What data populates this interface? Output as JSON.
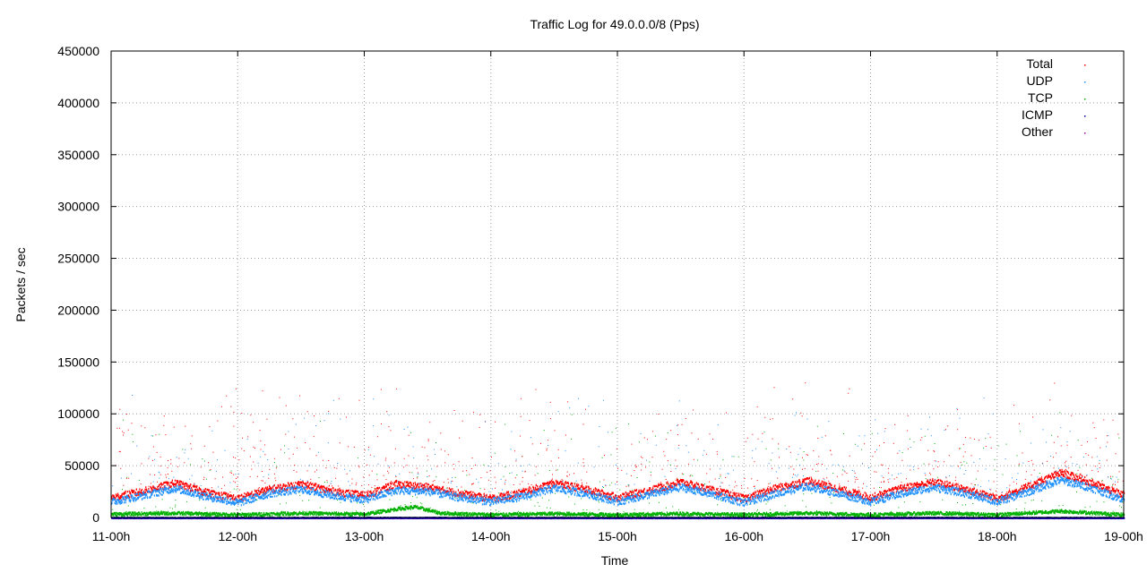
{
  "chart_data": {
    "type": "scatter",
    "title": "Traffic Log for 49.0.0.0/8 (Pps)",
    "xlabel": "Time",
    "ylabel": "Packets / sec",
    "xlim": [
      "11-00h",
      "19-00h"
    ],
    "ylim": [
      0,
      450000
    ],
    "x_ticks": [
      "11-00h",
      "12-00h",
      "13-00h",
      "14-00h",
      "15-00h",
      "16-00h",
      "17-00h",
      "18-00h",
      "19-00h"
    ],
    "y_ticks": [
      0,
      50000,
      100000,
      150000,
      200000,
      250000,
      300000,
      350000,
      400000,
      450000
    ],
    "grid": true,
    "legend_position": "top-right",
    "series": [
      {
        "name": "Total",
        "color": "#ff0000",
        "x_days": [
          0,
          0.25,
          0.5,
          0.75,
          1,
          1.25,
          1.5,
          1.75,
          2,
          2.25,
          2.5,
          2.75,
          3,
          3.25,
          3.5,
          3.75,
          4,
          4.25,
          4.5,
          4.75,
          5,
          5.25,
          5.5,
          5.75,
          6,
          6.25,
          6.5,
          6.75,
          7,
          7.25,
          7.5,
          7.75,
          8
        ],
        "values": [
          20000,
          26000,
          34000,
          25000,
          19000,
          28000,
          33000,
          26000,
          22000,
          33000,
          30000,
          24000,
          19000,
          25000,
          34000,
          28000,
          20000,
          27000,
          35000,
          27000,
          19000,
          29000,
          36000,
          28000,
          20000,
          29000,
          35000,
          28000,
          19000,
          31000,
          44000,
          34000,
          22000
        ]
      },
      {
        "name": "UDP",
        "color": "#1e90ff",
        "x_days": [
          0,
          0.25,
          0.5,
          0.75,
          1,
          1.25,
          1.5,
          1.75,
          2,
          2.25,
          2.5,
          2.75,
          3,
          3.25,
          3.5,
          3.75,
          4,
          4.25,
          4.5,
          4.75,
          5,
          5.25,
          5.5,
          5.75,
          6,
          6.25,
          6.5,
          6.75,
          7,
          7.25,
          7.5,
          7.75,
          8
        ],
        "values": [
          16000,
          22000,
          29000,
          21000,
          15000,
          24000,
          28000,
          22000,
          18000,
          27000,
          26000,
          20000,
          16000,
          21000,
          29000,
          24000,
          16000,
          23000,
          30000,
          23000,
          15000,
          24000,
          31000,
          24000,
          16000,
          24000,
          30000,
          24000,
          16000,
          26000,
          37000,
          29000,
          18000
        ]
      },
      {
        "name": "TCP",
        "color": "#00b000",
        "x_days": [
          0,
          0.5,
          1,
          1.5,
          2,
          2.25,
          2.4,
          2.6,
          3,
          3.5,
          4,
          4.5,
          5,
          5.5,
          6,
          6.5,
          7,
          7.5,
          8
        ],
        "values": [
          4000,
          5000,
          3500,
          5000,
          4000,
          9000,
          11000,
          5000,
          3500,
          4500,
          3500,
          4500,
          3500,
          5000,
          3500,
          5000,
          3500,
          7000,
          3500
        ]
      },
      {
        "name": "ICMP",
        "color": "#0000b0",
        "x_days": [
          0,
          2,
          4,
          6,
          8
        ],
        "values": [
          500,
          600,
          500,
          600,
          500
        ]
      },
      {
        "name": "Other",
        "color": "#a000a0",
        "x_days": [
          0,
          2,
          4,
          6,
          8
        ],
        "values": [
          300,
          300,
          300,
          300,
          300
        ]
      }
    ]
  }
}
